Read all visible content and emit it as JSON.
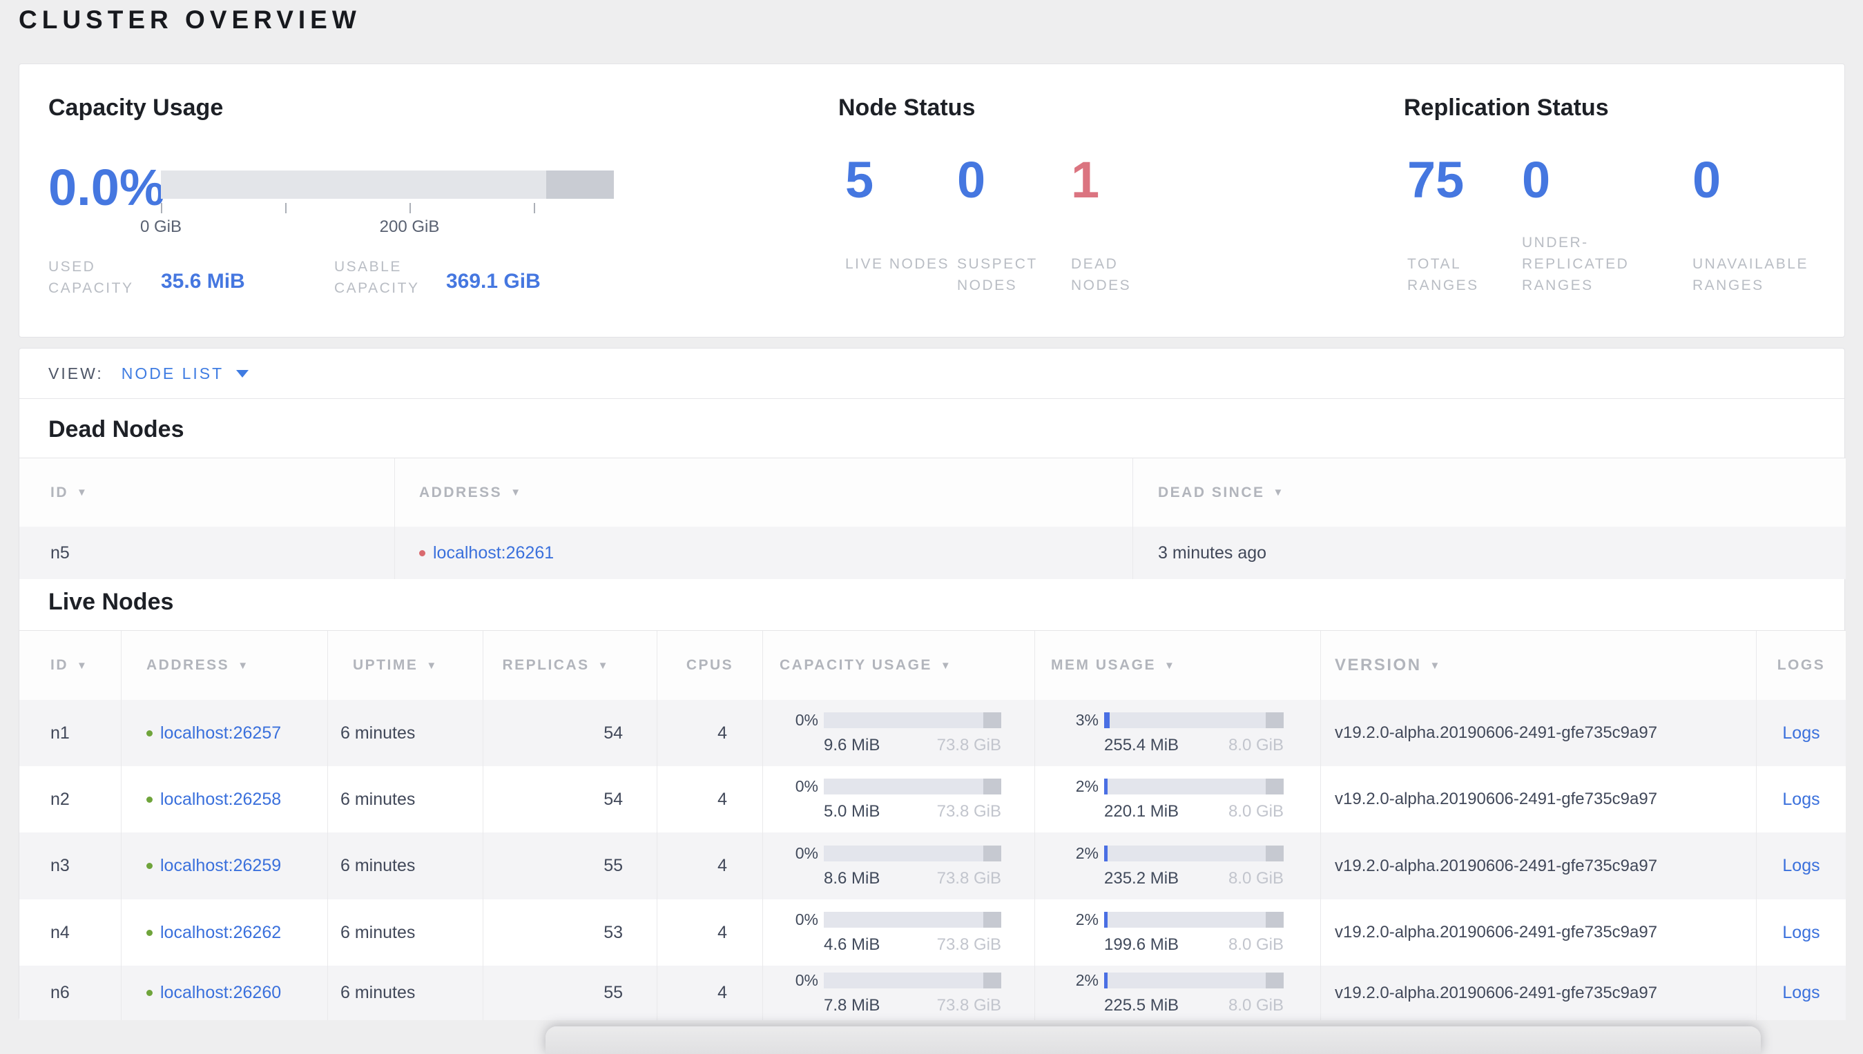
{
  "page": {
    "title": "CLUSTER OVERVIEW"
  },
  "colors": {
    "accent_blue": "#4577e0",
    "link_blue": "#3a70dc",
    "alert_red": "#db7480",
    "live_dot_green": "#6fa43b",
    "dead_dot_red": "#d9696e",
    "bar_track": "#e3e5ec",
    "bar_reserved_dark": "#c9ccd3",
    "bar_used_blue": "#4a6fe3"
  },
  "capacity": {
    "title": "Capacity Usage",
    "percent": "0.0%",
    "tick_labels": [
      "0 GiB",
      "200 GiB"
    ],
    "used_label": "USED CAPACITY",
    "used_value": "35.6 MiB",
    "usable_label": "USABLE CAPACITY",
    "usable_value": "369.1 GiB"
  },
  "node_status": {
    "title": "Node Status",
    "stats": [
      {
        "value": "5",
        "label": "LIVE NODES"
      },
      {
        "value": "0",
        "label": "SUSPECT NODES"
      },
      {
        "value": "1",
        "label": "DEAD NODES"
      }
    ]
  },
  "replication_status": {
    "title": "Replication Status",
    "stats": [
      {
        "value": "75",
        "label": "TOTAL RANGES"
      },
      {
        "value": "0",
        "label": "UNDER-REPLICATED RANGES"
      },
      {
        "value": "0",
        "label": "UNAVAILABLE RANGES"
      }
    ]
  },
  "view_bar": {
    "label": "VIEW:",
    "selected": "NODE LIST"
  },
  "dead_nodes": {
    "title": "Dead Nodes",
    "columns": [
      "ID",
      "ADDRESS",
      "DEAD SINCE"
    ],
    "rows": [
      {
        "id": "n5",
        "address": "localhost:26261",
        "dead_since": "3 minutes ago"
      }
    ]
  },
  "live_nodes": {
    "title": "Live Nodes",
    "columns": [
      "ID",
      "ADDRESS",
      "UPTIME",
      "REPLICAS",
      "CPUS",
      "CAPACITY USAGE",
      "MEM USAGE",
      "VERSION",
      "LOGS"
    ],
    "rows": [
      {
        "id": "n1",
        "address": "localhost:26257",
        "uptime": "6 minutes",
        "replicas": "54",
        "cpus": "4",
        "capacity": {
          "pct": "0%",
          "used": "9.6 MiB",
          "total": "73.8 GiB"
        },
        "memory": {
          "pct": "3%",
          "used": "255.4 MiB",
          "total": "8.0 GiB"
        },
        "version": "v19.2.0-alpha.20190606-2491-gfe735c9a97",
        "logs": "Logs"
      },
      {
        "id": "n2",
        "address": "localhost:26258",
        "uptime": "6 minutes",
        "replicas": "54",
        "cpus": "4",
        "capacity": {
          "pct": "0%",
          "used": "5.0 MiB",
          "total": "73.8 GiB"
        },
        "memory": {
          "pct": "2%",
          "used": "220.1 MiB",
          "total": "8.0 GiB"
        },
        "version": "v19.2.0-alpha.20190606-2491-gfe735c9a97",
        "logs": "Logs"
      },
      {
        "id": "n3",
        "address": "localhost:26259",
        "uptime": "6 minutes",
        "replicas": "55",
        "cpus": "4",
        "capacity": {
          "pct": "0%",
          "used": "8.6 MiB",
          "total": "73.8 GiB"
        },
        "memory": {
          "pct": "2%",
          "used": "235.2 MiB",
          "total": "8.0 GiB"
        },
        "version": "v19.2.0-alpha.20190606-2491-gfe735c9a97",
        "logs": "Logs"
      },
      {
        "id": "n4",
        "address": "localhost:26262",
        "uptime": "6 minutes",
        "replicas": "53",
        "cpus": "4",
        "capacity": {
          "pct": "0%",
          "used": "4.6 MiB",
          "total": "73.8 GiB"
        },
        "memory": {
          "pct": "2%",
          "used": "199.6 MiB",
          "total": "8.0 GiB"
        },
        "version": "v19.2.0-alpha.20190606-2491-gfe735c9a97",
        "logs": "Logs"
      },
      {
        "id": "n6",
        "address": "localhost:26260",
        "uptime": "6 minutes",
        "replicas": "55",
        "cpus": "4",
        "capacity": {
          "pct": "0%",
          "used": "7.8 MiB",
          "total": "73.8 GiB"
        },
        "memory": {
          "pct": "2%",
          "used": "225.5 MiB",
          "total": "8.0 GiB"
        },
        "version": "v19.2.0-alpha.20190606-2491-gfe735c9a97",
        "logs": "Logs"
      }
    ]
  }
}
